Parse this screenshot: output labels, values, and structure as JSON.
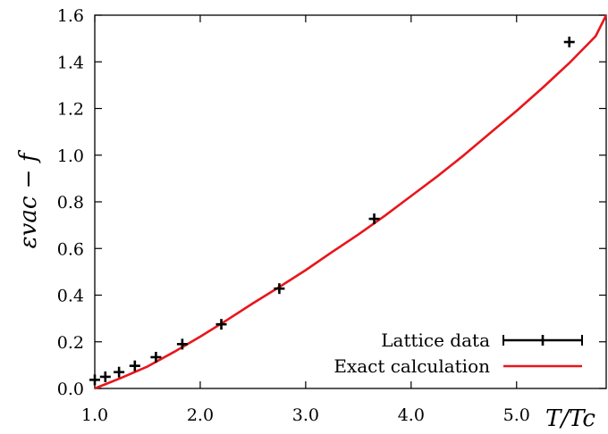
{
  "chart_data": {
    "type": "scatter",
    "xlabel": "T/Tc",
    "ylabel": "εvac − f",
    "xlim": [
      1.0,
      5.85
    ],
    "ylim": [
      0.0,
      1.6
    ],
    "x_ticks": [
      1.0,
      2.0,
      3.0,
      4.0,
      5.0
    ],
    "x_tick_labels": [
      "1.0",
      "2.0",
      "3.0",
      "4.0",
      "5.0"
    ],
    "y_ticks": [
      0.0,
      0.2,
      0.4,
      0.6,
      0.8,
      1.0,
      1.2,
      1.4,
      1.6
    ],
    "y_tick_labels": [
      "0.0",
      "0.2",
      "0.4",
      "0.6",
      "0.8",
      "1.0",
      "1.2",
      "1.4",
      "1.6"
    ],
    "grid": false,
    "legend_position": "bottom-right",
    "series": [
      {
        "name": "Lattice data",
        "kind": "points-with-errorbars",
        "color": "#000000",
        "x": [
          1.0,
          1.1,
          1.23,
          1.38,
          1.58,
          1.83,
          2.2,
          2.75,
          3.65,
          5.5
        ],
        "y": [
          0.037,
          0.05,
          0.07,
          0.097,
          0.134,
          0.19,
          0.275,
          0.428,
          0.727,
          1.485
        ]
      },
      {
        "name": "Exact calculation",
        "kind": "line",
        "color": "#e8161b",
        "x": [
          1.0,
          1.25,
          1.5,
          1.75,
          2.0,
          2.25,
          2.5,
          2.75,
          3.0,
          3.25,
          3.5,
          3.75,
          4.0,
          4.25,
          4.5,
          4.75,
          5.0,
          5.25,
          5.5,
          5.75,
          5.85
        ],
        "y": [
          0.0,
          0.045,
          0.094,
          0.156,
          0.222,
          0.292,
          0.365,
          0.435,
          0.507,
          0.585,
          0.66,
          0.74,
          0.825,
          0.91,
          1.0,
          1.095,
          1.19,
          1.29,
          1.395,
          1.51,
          1.6
        ]
      }
    ]
  }
}
